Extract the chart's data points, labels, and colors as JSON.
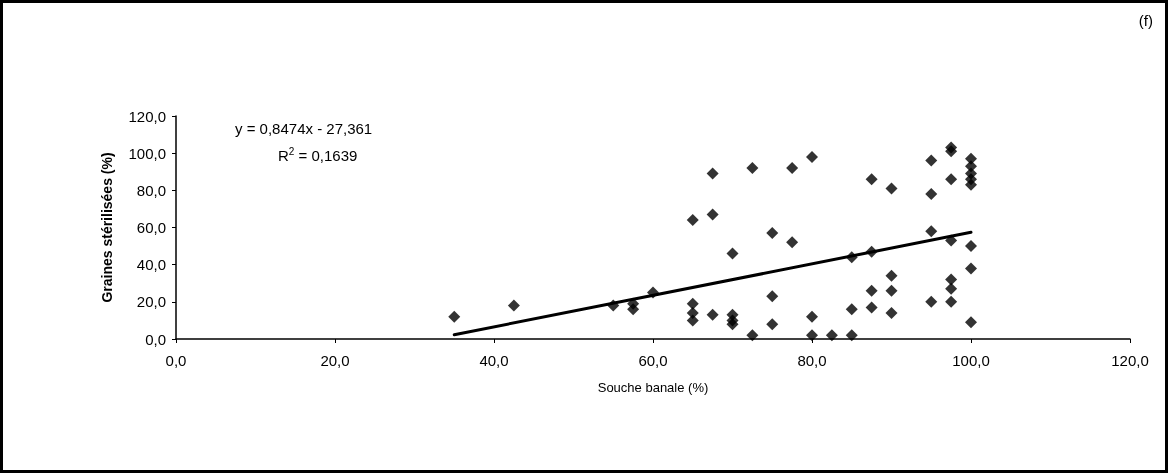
{
  "chart_data": {
    "type": "scatter",
    "xlabel": "Souche banale (%)",
    "ylabel": "Graines stérilisées (%)",
    "annotations": [
      "(f)",
      "y = 0,8474x - 27,361",
      "R$^{2}$ = 0,1639"
    ],
    "xlim": [
      0,
      120
    ],
    "ylim": [
      0,
      120
    ],
    "xticks": [
      {
        "value": 0,
        "label": "0,0"
      },
      {
        "value": 20,
        "label": "20,0"
      },
      {
        "value": 40,
        "label": "40,0"
      },
      {
        "value": 60,
        "label": "60,0"
      },
      {
        "value": 80,
        "label": "80,0"
      },
      {
        "value": 100,
        "label": "100,0"
      },
      {
        "value": 120,
        "label": "120,0"
      }
    ],
    "yticks": [
      {
        "value": 0,
        "label": "0,0"
      },
      {
        "value": 20,
        "label": "20,0"
      },
      {
        "value": 40,
        "label": "40,0"
      },
      {
        "value": 60,
        "label": "60,0"
      },
      {
        "value": 80,
        "label": "80,0"
      },
      {
        "value": 100,
        "label": "100,0"
      },
      {
        "value": 120,
        "label": "120,0"
      }
    ],
    "grid": false,
    "marker": "diamond",
    "series": [
      {
        "color": "#000000",
        "x": [
          35,
          42.5,
          55,
          57.5,
          57.5,
          60,
          65,
          65,
          65,
          65,
          67.5,
          67.5,
          67.5,
          70,
          70,
          70,
          70,
          72.5,
          72.5,
          75,
          75,
          75,
          77.5,
          77.5,
          80,
          80,
          80,
          82.5,
          85,
          85,
          85,
          87.5,
          87.5,
          87.5,
          87.5,
          90,
          90,
          90,
          90,
          95,
          95,
          95,
          95,
          97.5,
          97.5,
          97.5,
          97.5,
          97.5,
          97.5,
          97.5,
          100,
          100,
          100,
          100,
          100,
          100,
          100,
          100
        ],
        "values": [
          12,
          18,
          18,
          19,
          16,
          25,
          64,
          19,
          14,
          10,
          89,
          67,
          13,
          46,
          13,
          10,
          8,
          92,
          2,
          57,
          23,
          8,
          92,
          52,
          98,
          12,
          2,
          2,
          44,
          16,
          2,
          86,
          47,
          26,
          17,
          81,
          34,
          26,
          14,
          96,
          78,
          58,
          20,
          103,
          101,
          86,
          53,
          32,
          27,
          20,
          97,
          93,
          89,
          86,
          83,
          50,
          38,
          9
        ]
      },
      {
        "type": "line",
        "color": "#000000",
        "marker": "none",
        "line_style": "solid",
        "x": [
          35,
          100
        ],
        "values": [
          2.3,
          57.4
        ]
      }
    ]
  }
}
